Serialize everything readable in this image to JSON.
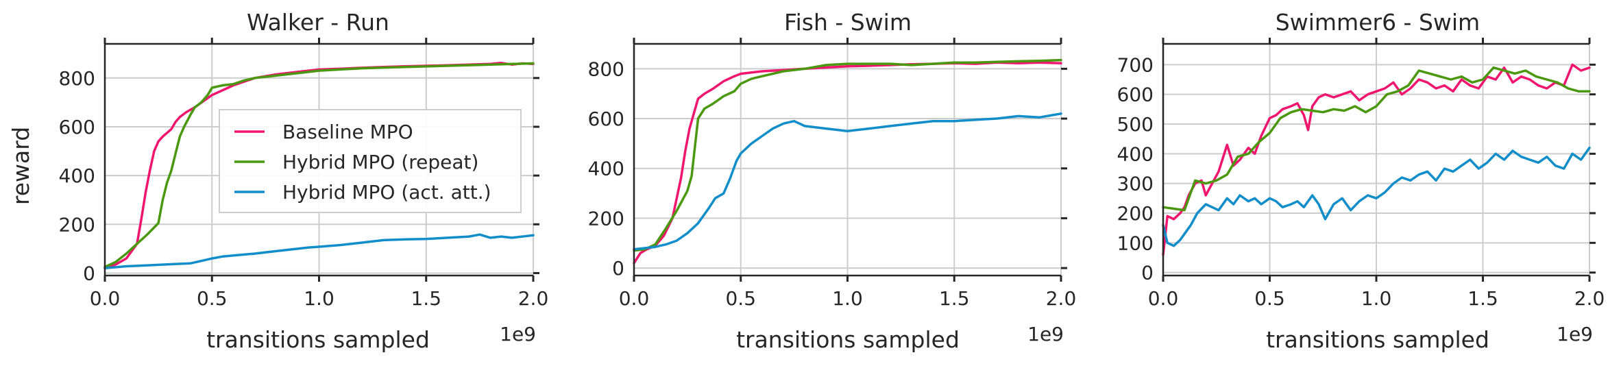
{
  "figure": {
    "ylabel": "reward",
    "xlabel": "transitions sampled",
    "x_offset_label": "1e9"
  },
  "colors": {
    "baseline": "#f0166f",
    "repeat": "#4a980f",
    "attention": "#118ec9"
  },
  "chart_data": [
    {
      "type": "line",
      "title": "Walker - Run",
      "xlabel": "transitions sampled",
      "ylabel": "reward",
      "xlim": [
        0,
        2.0
      ],
      "ylim": [
        -10,
        940
      ],
      "xticks": [
        "0.0",
        "0.5",
        "1.0",
        "1.5",
        "2.0"
      ],
      "yticks": [
        "0",
        "200",
        "400",
        "600",
        "800"
      ],
      "grid": true,
      "legend": {
        "placement": "center-right",
        "entries": [
          "Baseline MPO",
          "Hybrid MPO (repeat)",
          "Hybrid MPO (act. att.)"
        ]
      },
      "series": [
        {
          "name": "Baseline MPO",
          "x": [
            0.0,
            0.05,
            0.1,
            0.15,
            0.17,
            0.19,
            0.21,
            0.23,
            0.25,
            0.27,
            0.29,
            0.31,
            0.33,
            0.35,
            0.38,
            0.42,
            0.46,
            0.5,
            0.55,
            0.6,
            0.7,
            0.8,
            0.9,
            1.0,
            1.1,
            1.2,
            1.3,
            1.4,
            1.5,
            1.6,
            1.7,
            1.8,
            1.85,
            1.9,
            1.95,
            2.0
          ],
          "values": [
            20,
            35,
            60,
            120,
            220,
            330,
            420,
            500,
            540,
            560,
            575,
            590,
            620,
            640,
            660,
            680,
            705,
            730,
            750,
            770,
            800,
            815,
            825,
            835,
            838,
            842,
            845,
            848,
            850,
            852,
            855,
            858,
            862,
            855,
            860,
            858
          ]
        },
        {
          "name": "Hybrid MPO (repeat)",
          "x": [
            0.0,
            0.05,
            0.1,
            0.15,
            0.2,
            0.25,
            0.27,
            0.29,
            0.31,
            0.33,
            0.35,
            0.37,
            0.4,
            0.42,
            0.45,
            0.48,
            0.5,
            0.55,
            0.6,
            0.65,
            0.7,
            0.8,
            0.9,
            1.0,
            1.2,
            1.4,
            1.6,
            1.8,
            2.0
          ],
          "values": [
            25,
            45,
            80,
            120,
            160,
            205,
            300,
            370,
            420,
            490,
            560,
            600,
            650,
            680,
            700,
            730,
            760,
            770,
            775,
            790,
            800,
            810,
            820,
            830,
            840,
            845,
            850,
            855,
            860
          ]
        },
        {
          "name": "Hybrid MPO (act. att.)",
          "x": [
            0.0,
            0.1,
            0.2,
            0.3,
            0.4,
            0.45,
            0.5,
            0.55,
            0.6,
            0.7,
            0.8,
            0.9,
            0.95,
            1.0,
            1.1,
            1.2,
            1.3,
            1.4,
            1.5,
            1.6,
            1.7,
            1.75,
            1.8,
            1.85,
            1.9,
            2.0
          ],
          "values": [
            20,
            28,
            32,
            36,
            40,
            50,
            60,
            68,
            72,
            80,
            90,
            100,
            105,
            108,
            115,
            125,
            135,
            138,
            140,
            145,
            150,
            158,
            145,
            150,
            145,
            155
          ]
        }
      ]
    },
    {
      "type": "line",
      "title": "Fish - Swim",
      "xlabel": "transitions sampled",
      "xlim": [
        0,
        2.0
      ],
      "ylim": [
        -30,
        900
      ],
      "xticks": [
        "0.0",
        "0.5",
        "1.0",
        "1.5",
        "2.0"
      ],
      "yticks": [
        "0",
        "200",
        "400",
        "600",
        "800"
      ],
      "grid": true,
      "series": [
        {
          "name": "Baseline MPO",
          "x": [
            0.0,
            0.03,
            0.06,
            0.1,
            0.14,
            0.18,
            0.2,
            0.22,
            0.24,
            0.26,
            0.28,
            0.3,
            0.33,
            0.37,
            0.42,
            0.47,
            0.5,
            0.55,
            0.6,
            0.7,
            0.8,
            0.9,
            1.0,
            1.1,
            1.2,
            1.3,
            1.4,
            1.5,
            1.6,
            1.7,
            1.8,
            1.9,
            2.0
          ],
          "values": [
            20,
            60,
            75,
            90,
            130,
            200,
            280,
            360,
            470,
            560,
            620,
            680,
            700,
            720,
            750,
            770,
            780,
            785,
            790,
            795,
            800,
            805,
            810,
            812,
            815,
            818,
            820,
            822,
            820,
            825,
            822,
            825,
            822
          ]
        },
        {
          "name": "Hybrid MPO (repeat)",
          "x": [
            0.0,
            0.05,
            0.1,
            0.15,
            0.2,
            0.25,
            0.27,
            0.3,
            0.33,
            0.37,
            0.42,
            0.47,
            0.5,
            0.55,
            0.6,
            0.7,
            0.8,
            0.9,
            1.0,
            1.1,
            1.2,
            1.3,
            1.4,
            1.5,
            1.6,
            1.7,
            1.8,
            1.9,
            2.0
          ],
          "values": [
            70,
            75,
            95,
            160,
            230,
            310,
            370,
            600,
            640,
            660,
            690,
            710,
            740,
            760,
            770,
            790,
            800,
            815,
            820,
            820,
            820,
            815,
            820,
            825,
            825,
            828,
            830,
            832,
            835
          ]
        },
        {
          "name": "Hybrid MPO (act. att.)",
          "x": [
            0.0,
            0.05,
            0.1,
            0.15,
            0.2,
            0.25,
            0.3,
            0.35,
            0.38,
            0.42,
            0.45,
            0.48,
            0.5,
            0.55,
            0.6,
            0.65,
            0.7,
            0.75,
            0.8,
            0.9,
            1.0,
            1.1,
            1.2,
            1.3,
            1.4,
            1.5,
            1.6,
            1.7,
            1.8,
            1.9,
            2.0
          ],
          "values": [
            75,
            80,
            85,
            95,
            110,
            140,
            180,
            240,
            280,
            300,
            360,
            430,
            460,
            500,
            530,
            560,
            580,
            590,
            570,
            560,
            550,
            560,
            570,
            580,
            590,
            590,
            595,
            600,
            610,
            605,
            620
          ]
        }
      ]
    },
    {
      "type": "line",
      "title": "Swimmer6 - Swim",
      "xlabel": "transitions sampled",
      "xlim": [
        0,
        2.0
      ],
      "ylim": [
        -10,
        770
      ],
      "xticks": [
        "0.0",
        "0.5",
        "1.0",
        "1.5",
        "2.0"
      ],
      "yticks": [
        "0",
        "100",
        "200",
        "300",
        "400",
        "500",
        "600",
        "700"
      ],
      "grid": true,
      "series": [
        {
          "name": "Baseline MPO",
          "x": [
            0.0,
            0.02,
            0.05,
            0.08,
            0.1,
            0.12,
            0.15,
            0.18,
            0.2,
            0.23,
            0.26,
            0.3,
            0.33,
            0.36,
            0.4,
            0.43,
            0.46,
            0.5,
            0.53,
            0.56,
            0.6,
            0.63,
            0.66,
            0.68,
            0.7,
            0.73,
            0.76,
            0.8,
            0.84,
            0.88,
            0.92,
            0.96,
            1.0,
            1.04,
            1.08,
            1.12,
            1.16,
            1.2,
            1.24,
            1.28,
            1.32,
            1.36,
            1.4,
            1.44,
            1.48,
            1.52,
            1.56,
            1.6,
            1.64,
            1.68,
            1.72,
            1.76,
            1.8,
            1.84,
            1.88,
            1.92,
            1.96,
            2.0
          ],
          "values": [
            60,
            190,
            180,
            200,
            220,
            260,
            300,
            310,
            260,
            300,
            340,
            430,
            360,
            380,
            420,
            400,
            460,
            520,
            530,
            550,
            560,
            570,
            530,
            480,
            560,
            590,
            600,
            590,
            600,
            610,
            580,
            600,
            610,
            620,
            640,
            600,
            620,
            650,
            640,
            620,
            630,
            610,
            650,
            630,
            620,
            660,
            650,
            690,
            640,
            660,
            650,
            630,
            620,
            640,
            630,
            700,
            680,
            690
          ]
        },
        {
          "name": "Hybrid MPO (repeat)",
          "x": [
            0.0,
            0.05,
            0.1,
            0.15,
            0.2,
            0.25,
            0.3,
            0.35,
            0.4,
            0.45,
            0.5,
            0.55,
            0.6,
            0.65,
            0.7,
            0.75,
            0.8,
            0.85,
            0.9,
            0.95,
            1.0,
            1.05,
            1.1,
            1.15,
            1.2,
            1.25,
            1.3,
            1.35,
            1.4,
            1.45,
            1.5,
            1.55,
            1.6,
            1.65,
            1.7,
            1.75,
            1.8,
            1.85,
            1.9,
            1.95,
            2.0
          ],
          "values": [
            220,
            215,
            210,
            310,
            300,
            310,
            330,
            390,
            400,
            440,
            470,
            520,
            540,
            550,
            545,
            540,
            550,
            545,
            560,
            540,
            560,
            600,
            610,
            630,
            680,
            670,
            660,
            650,
            660,
            640,
            650,
            690,
            680,
            670,
            680,
            660,
            650,
            640,
            620,
            610,
            610
          ]
        },
        {
          "name": "Hybrid MPO (act. att.)",
          "x": [
            0.0,
            0.02,
            0.05,
            0.08,
            0.1,
            0.13,
            0.16,
            0.2,
            0.23,
            0.26,
            0.3,
            0.33,
            0.36,
            0.4,
            0.43,
            0.46,
            0.5,
            0.53,
            0.56,
            0.6,
            0.63,
            0.66,
            0.7,
            0.73,
            0.76,
            0.8,
            0.84,
            0.88,
            0.92,
            0.96,
            1.0,
            1.04,
            1.08,
            1.12,
            1.16,
            1.2,
            1.24,
            1.28,
            1.32,
            1.36,
            1.4,
            1.44,
            1.48,
            1.52,
            1.56,
            1.6,
            1.64,
            1.68,
            1.72,
            1.76,
            1.8,
            1.84,
            1.88,
            1.92,
            1.96,
            2.0
          ],
          "values": [
            160,
            100,
            90,
            110,
            130,
            160,
            200,
            230,
            220,
            210,
            250,
            230,
            260,
            240,
            250,
            230,
            250,
            240,
            220,
            230,
            240,
            220,
            260,
            230,
            180,
            230,
            250,
            210,
            240,
            260,
            250,
            270,
            300,
            320,
            310,
            330,
            340,
            310,
            350,
            340,
            360,
            380,
            350,
            370,
            400,
            380,
            410,
            390,
            380,
            370,
            390,
            360,
            350,
            400,
            380,
            420
          ]
        }
      ]
    }
  ]
}
